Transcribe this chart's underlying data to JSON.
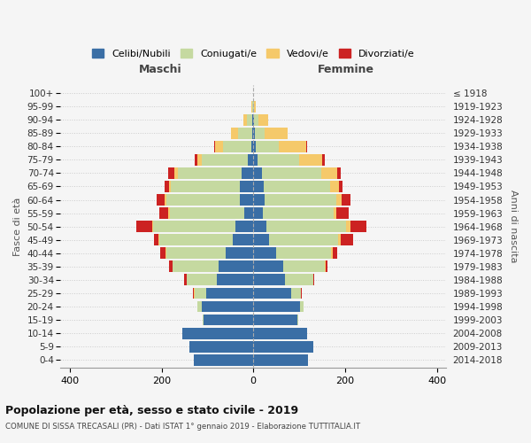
{
  "age_groups": [
    "0-4",
    "5-9",
    "10-14",
    "15-19",
    "20-24",
    "25-29",
    "30-34",
    "35-39",
    "40-44",
    "45-49",
    "50-54",
    "55-59",
    "60-64",
    "65-69",
    "70-74",
    "75-79",
    "80-84",
    "85-89",
    "90-94",
    "95-99",
    "100+"
  ],
  "birth_years": [
    "2014-2018",
    "2009-2013",
    "2004-2008",
    "1999-2003",
    "1994-1998",
    "1989-1993",
    "1984-1988",
    "1979-1983",
    "1974-1978",
    "1969-1973",
    "1964-1968",
    "1959-1963",
    "1954-1958",
    "1949-1953",
    "1944-1948",
    "1939-1943",
    "1934-1938",
    "1929-1933",
    "1924-1928",
    "1919-1923",
    "≤ 1918"
  ],
  "male": {
    "celibi": [
      130,
      140,
      155,
      108,
      112,
      102,
      80,
      75,
      60,
      45,
      38,
      20,
      30,
      30,
      25,
      12,
      5,
      3,
      2,
      0,
      0
    ],
    "coniugati": [
      0,
      0,
      0,
      2,
      10,
      25,
      65,
      100,
      130,
      160,
      180,
      162,
      160,
      150,
      140,
      100,
      60,
      30,
      12,
      3,
      0
    ],
    "vedovi": [
      0,
      0,
      0,
      0,
      0,
      2,
      0,
      0,
      2,
      2,
      2,
      3,
      3,
      3,
      8,
      10,
      18,
      15,
      8,
      2,
      0
    ],
    "divorziati": [
      0,
      0,
      0,
      0,
      0,
      2,
      5,
      8,
      10,
      10,
      35,
      20,
      18,
      10,
      12,
      5,
      2,
      0,
      0,
      0,
      0
    ]
  },
  "female": {
    "nubili": [
      120,
      130,
      118,
      96,
      102,
      82,
      70,
      65,
      50,
      35,
      28,
      20,
      25,
      22,
      18,
      10,
      5,
      3,
      2,
      0,
      0
    ],
    "coniugate": [
      0,
      0,
      0,
      2,
      8,
      22,
      60,
      90,
      120,
      150,
      175,
      155,
      155,
      145,
      130,
      90,
      50,
      22,
      10,
      2,
      0
    ],
    "vedove": [
      0,
      0,
      0,
      0,
      0,
      0,
      0,
      2,
      3,
      5,
      8,
      5,
      12,
      20,
      35,
      50,
      60,
      50,
      20,
      3,
      0
    ],
    "divorziate": [
      0,
      0,
      0,
      0,
      0,
      2,
      3,
      5,
      10,
      28,
      35,
      28,
      20,
      8,
      8,
      5,
      2,
      0,
      0,
      0,
      0
    ]
  },
  "colors": {
    "celibi_nubili": "#3a6ea5",
    "coniugati": "#c5d9a0",
    "vedovi": "#f5c96a",
    "divorziati": "#cc2222"
  },
  "title": "Popolazione per età, sesso e stato civile - 2019",
  "subtitle": "COMUNE DI SISSA TRECASALI (PR) - Dati ISTAT 1° gennaio 2019 - Elaborazione TUTTITALIA.IT",
  "xlabel_left": "Maschi",
  "xlabel_right": "Femmine",
  "ylabel_left": "Fasce di età",
  "ylabel_right": "Anni di nascita",
  "legend_labels": [
    "Celibi/Nubili",
    "Coniugati/e",
    "Vedovi/e",
    "Divorziati/e"
  ],
  "xlim": 420,
  "bg_color": "#f5f5f5",
  "grid_color": "#cccccc"
}
